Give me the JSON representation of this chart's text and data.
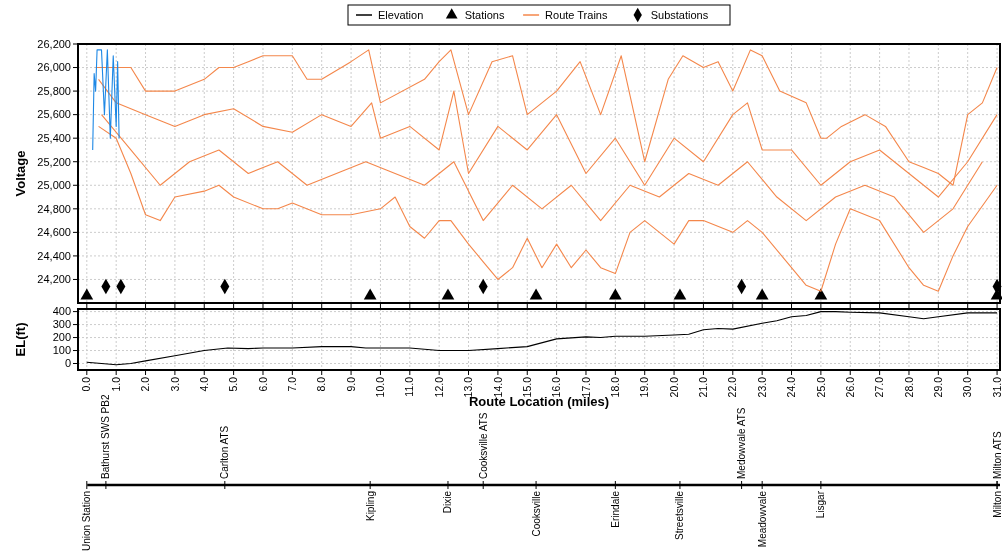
{
  "chart_data": [
    {
      "type": "line",
      "ylabel": "Voltage",
      "xlim": [
        -0.3,
        31.1
      ],
      "ylim": [
        24000,
        26200
      ],
      "xticks": [
        0,
        1,
        2,
        3,
        4,
        5,
        6,
        7,
        8,
        9,
        10,
        11,
        12,
        13,
        14,
        15,
        16,
        17,
        18,
        19,
        20,
        21,
        22,
        23,
        24,
        25,
        26,
        27,
        28,
        29,
        30,
        31
      ],
      "yticks": [
        {
          "value": 24200,
          "label": "24,200"
        },
        {
          "value": 24400,
          "label": "24,400"
        },
        {
          "value": 24600,
          "label": "24,600"
        },
        {
          "value": 24800,
          "label": "24,800"
        },
        {
          "value": 25000,
          "label": "25,000"
        },
        {
          "value": 25200,
          "label": "25,200"
        },
        {
          "value": 25400,
          "label": "25,400"
        },
        {
          "value": 25600,
          "label": "25,600"
        },
        {
          "value": 25800,
          "label": "25,800"
        },
        {
          "value": 26000,
          "label": "26,000"
        },
        {
          "value": 26200,
          "label": "26,200"
        }
      ],
      "grid": true,
      "legend": "top",
      "series": [
        {
          "name": "Stations",
          "type": "scatter",
          "marker": "triangle",
          "color": "#000000",
          "x": [
            0,
            9.65,
            12.3,
            15.3,
            18,
            20.2,
            23,
            25,
            31
          ],
          "values": [
            24060,
            24060,
            24060,
            24060,
            24060,
            24060,
            24060,
            24060,
            24060
          ]
        },
        {
          "name": "Route Trains",
          "color": "#f4874b",
          "x": [
            0.3,
            1.5,
            2,
            3,
            4,
            4.5,
            5,
            5.5,
            6,
            7,
            7.5,
            8,
            9,
            9.6,
            10,
            11.5,
            12,
            12.4,
            13,
            13.8,
            14.5,
            15,
            16,
            16.8,
            17.5,
            18.2,
            19,
            19.8,
            20.3,
            21,
            21.5,
            22,
            22.6,
            23,
            23.6,
            24.5,
            25,
            25.2,
            25.7,
            26.5,
            27.2,
            28,
            28.5,
            29,
            29.5,
            30,
            30.5,
            31
          ],
          "values": [
            26000,
            26000,
            25800,
            25800,
            25900,
            26000,
            26000,
            26050,
            26100,
            26100,
            25900,
            25900,
            26050,
            26150,
            25700,
            25900,
            26050,
            26150,
            25600,
            26050,
            26100,
            25600,
            25800,
            26050,
            25600,
            26100,
            25200,
            25900,
            26100,
            26000,
            26050,
            25800,
            26150,
            26100,
            25800,
            25700,
            25400,
            25400,
            25500,
            25600,
            25500,
            25200,
            25150,
            25100,
            25000,
            25600,
            25700,
            26000
          ]
        },
        {
          "color": "#f4874b",
          "x": [
            0.4,
            1,
            1.5,
            2,
            2.5,
            3,
            4,
            4.5,
            5,
            6,
            6.5,
            7,
            8,
            9,
            10,
            10.5,
            11,
            11.5,
            12,
            12.4,
            13,
            13.5,
            14,
            14.5,
            15,
            15.5,
            16,
            16.5,
            17,
            17.5,
            18,
            18.5,
            19,
            20,
            20.5,
            21,
            22,
            22.5,
            23,
            24,
            24.5,
            25,
            25.5,
            26,
            27,
            28,
            28.5,
            29,
            29.5,
            30,
            31
          ],
          "values": [
            25500,
            25400,
            25100,
            24750,
            24700,
            24900,
            24950,
            25000,
            24900,
            24800,
            24800,
            24850,
            24750,
            24750,
            24800,
            24900,
            24650,
            24550,
            24700,
            24700,
            24500,
            24350,
            24200,
            24300,
            24550,
            24300,
            24500,
            24300,
            24450,
            24300,
            24250,
            24600,
            24700,
            24500,
            24700,
            24700,
            24600,
            24700,
            24600,
            24300,
            24150,
            24100,
            24500,
            24800,
            24700,
            24300,
            24150,
            24100,
            24400,
            24650,
            25000
          ]
        },
        {
          "color": "#f4874b",
          "x": [
            0.4,
            1,
            2,
            3,
            4,
            5,
            6,
            7,
            8,
            9,
            9.7,
            10,
            11,
            12,
            12.5,
            13,
            14,
            15,
            16,
            17,
            18,
            19,
            20,
            21,
            22,
            22.5,
            23,
            24,
            25,
            26,
            27,
            28,
            29,
            30,
            31
          ],
          "values": [
            25900,
            25700,
            25600,
            25500,
            25600,
            25650,
            25500,
            25450,
            25600,
            25500,
            25700,
            25400,
            25500,
            25300,
            25800,
            25100,
            25500,
            25300,
            25600,
            25100,
            25400,
            25000,
            25400,
            25200,
            25600,
            25700,
            25300,
            25300,
            25000,
            25200,
            25300,
            25100,
            24900,
            25200,
            25600
          ]
        },
        {
          "color": "#f4874b",
          "x": [
            0.5,
            1.5,
            2.5,
            3.5,
            4.5,
            5.5,
            6.5,
            7.5,
            8.5,
            9.5,
            10.5,
            11.5,
            12.5,
            13.5,
            14.5,
            15.5,
            16.5,
            17.5,
            18.5,
            19.5,
            20.5,
            21.5,
            22.5,
            23.5,
            24.5,
            25.5,
            26.5,
            27.5,
            28.5,
            29.5,
            30.5
          ],
          "values": [
            25600,
            25300,
            25000,
            25200,
            25300,
            25100,
            25200,
            25000,
            25100,
            25200,
            25100,
            25000,
            25200,
            24700,
            25000,
            24800,
            25000,
            24700,
            25000,
            24900,
            25100,
            25000,
            25200,
            24900,
            24700,
            24900,
            25000,
            24900,
            24600,
            24800,
            25200
          ]
        },
        {
          "color": "#1e88e5",
          "x": [
            0.2,
            0.25,
            0.3,
            0.35,
            0.5,
            0.6,
            0.7,
            0.8,
            0.9,
            1,
            1.05,
            1.1
          ],
          "values": [
            25300,
            25950,
            25800,
            26150,
            26150,
            25600,
            26150,
            25400,
            26100,
            25500,
            26050,
            25400
          ]
        },
        {
          "name": "Substations",
          "type": "scatter",
          "marker": "diamond",
          "color": "#000000",
          "x": [
            0.65,
            1.16,
            4.7,
            13.5,
            22.3,
            31
          ],
          "values": [
            24140,
            24140,
            24140,
            24140,
            24140,
            24140
          ]
        }
      ],
      "tick_labels": "y",
      "annotations": [
        "Union Station",
        "Kipling",
        "Dixie",
        "Cooksville",
        "Erindale",
        "Streetsville",
        "Meadowvale",
        "Lisgar",
        "Milton",
        "Bathurst SWS PB2",
        null,
        "Carlton ATS",
        "Cooksville ATS",
        "Medowvale ATS",
        "Milton ATS"
      ]
    },
    {
      "type": "line",
      "xlabel": "Route Location (miles)",
      "ylabel": "EL(ft)",
      "xlim": [
        -0.3,
        31.1
      ],
      "ylim": [
        -50,
        420
      ],
      "xticks": [
        {
          "value": 0,
          "label": "0.0"
        },
        {
          "value": 1,
          "label": "1.0"
        },
        {
          "value": 2,
          "label": "2.0"
        },
        {
          "value": 3,
          "label": "3.0"
        },
        {
          "value": 4,
          "label": "4.0"
        },
        {
          "value": 5,
          "label": "5.0"
        },
        {
          "value": 6,
          "label": "6.0"
        },
        {
          "value": 7,
          "label": "7.0"
        },
        {
          "value": 8,
          "label": "8.0"
        },
        {
          "value": 9,
          "label": "9.0"
        },
        {
          "value": 10,
          "label": "10.0"
        },
        {
          "value": 11,
          "label": "11.0"
        },
        {
          "value": 12,
          "label": "12.0"
        },
        {
          "value": 13,
          "label": "13.0"
        },
        {
          "value": 14,
          "label": "14.0"
        },
        {
          "value": 15,
          "label": "15.0"
        },
        {
          "value": 16,
          "label": "16.0"
        },
        {
          "value": 17,
          "label": "17.0"
        },
        {
          "value": 18,
          "label": "18.0"
        },
        {
          "value": 19,
          "label": "19.0"
        },
        {
          "value": 20,
          "label": "20.0"
        },
        {
          "value": 21,
          "label": "21.0"
        },
        {
          "value": 22,
          "label": "22.0"
        },
        {
          "value": 23,
          "label": "23.0"
        },
        {
          "value": 24,
          "label": "24.0"
        },
        {
          "value": 25,
          "label": "25.0"
        },
        {
          "value": 26,
          "label": "26.0"
        },
        {
          "value": 27,
          "label": "27.0"
        },
        {
          "value": 28,
          "label": "28.0"
        },
        {
          "value": 29,
          "label": "29.0"
        },
        {
          "value": 30,
          "label": "30.0"
        },
        {
          "value": 31,
          "label": "31.0"
        }
      ],
      "yticks": [
        0,
        100,
        200,
        300,
        400
      ],
      "grid": true,
      "series": [
        {
          "name": "Elevation",
          "color": "#000000",
          "x": [
            0,
            0.5,
            1,
            1.5,
            2,
            3,
            4,
            4.8,
            5.5,
            6,
            7,
            8,
            9,
            9.5,
            11,
            11.5,
            12,
            13,
            14,
            15,
            16,
            17,
            17.5,
            18,
            19,
            20,
            20.5,
            21,
            21.5,
            22,
            23,
            23.5,
            24,
            24.5,
            25,
            25.5,
            26,
            27,
            28,
            28.5,
            29,
            30,
            31
          ],
          "values": [
            10,
            0,
            -10,
            0,
            20,
            60,
            100,
            120,
            115,
            120,
            120,
            130,
            130,
            120,
            120,
            110,
            100,
            100,
            115,
            130,
            190,
            205,
            200,
            210,
            210,
            220,
            225,
            260,
            270,
            265,
            310,
            330,
            360,
            370,
            400,
            400,
            395,
            390,
            360,
            345,
            360,
            390,
            390
          ]
        }
      ]
    }
  ]
}
